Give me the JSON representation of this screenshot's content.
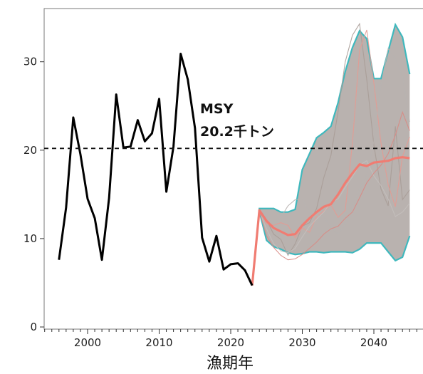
{
  "chart_data": {
    "type": "line",
    "xlabel": "漁期年",
    "ylabel": "",
    "xlim": [
      1994,
      2046
    ],
    "ylim": [
      0,
      36
    ],
    "x_ticks": [
      2000,
      2010,
      2020,
      2030,
      2040
    ],
    "y_ticks": [
      0,
      10,
      20,
      30
    ],
    "grid": false,
    "reference_line": {
      "value": 20.2,
      "style": "dashed",
      "label_line1": "MSY",
      "label_line2": "20.2千トン"
    },
    "observed": {
      "color": "#000000",
      "x": [
        1996,
        1997,
        1998,
        1999,
        2000,
        2001,
        2002,
        2003,
        2004,
        2005,
        2006,
        2007,
        2008,
        2009,
        2010,
        2011,
        2012,
        2013,
        2014,
        2015,
        2016,
        2017,
        2018,
        2019,
        2020,
        2021,
        2022,
        2023
      ],
      "values": [
        7.6,
        13.5,
        23.7,
        19.5,
        14.5,
        12.3,
        7.6,
        14.6,
        26.3,
        20.3,
        20.4,
        23.4,
        21.0,
        21.9,
        25.8,
        15.3,
        20.4,
        30.9,
        28.0,
        22.5,
        10.1,
        7.4,
        10.3,
        6.5,
        7.1,
        7.2,
        6.4,
        4.7
      ]
    },
    "projection_band": {
      "fill": "#b5aeab",
      "edge_color": "#3fb8bd",
      "x": [
        2023,
        2024,
        2025,
        2026,
        2027,
        2028,
        2029,
        2030,
        2031,
        2032,
        2033,
        2034,
        2035,
        2036,
        2037,
        2038,
        2039,
        2040,
        2041,
        2042,
        2043,
        2044,
        2045
      ],
      "upper": [
        4.7,
        13.4,
        13.4,
        13.4,
        13.0,
        13.0,
        13.3,
        17.8,
        19.6,
        21.4,
        22.0,
        22.7,
        25.4,
        28.9,
        31.6,
        33.5,
        32.6,
        28.1,
        28.1,
        31.2,
        34.2,
        32.8,
        28.6
      ],
      "lower": [
        4.7,
        13.1,
        9.8,
        9.1,
        8.8,
        8.4,
        8.2,
        8.3,
        8.5,
        8.5,
        8.4,
        8.5,
        8.5,
        8.5,
        8.4,
        8.8,
        9.5,
        9.5,
        9.5,
        8.5,
        7.5,
        7.9,
        10.3
      ]
    },
    "median": {
      "color": "#f07c72",
      "x": [
        2023,
        2024,
        2025,
        2026,
        2027,
        2028,
        2029,
        2030,
        2031,
        2032,
        2033,
        2034,
        2035,
        2036,
        2037,
        2038,
        2039,
        2040,
        2041,
        2042,
        2043,
        2044,
        2045
      ],
      "values": [
        4.7,
        13.2,
        12.0,
        11.2,
        10.8,
        10.4,
        10.5,
        11.5,
        12.3,
        13.0,
        13.6,
        13.9,
        15.0,
        16.3,
        17.4,
        18.4,
        18.2,
        18.6,
        18.7,
        18.8,
        19.1,
        19.2,
        19.1
      ]
    },
    "trajectories": [
      {
        "color": "#a89c97",
        "values": [
          4.7,
          13.3,
          12.1,
          10.5,
          9.9,
          8.1,
          9.4,
          11.4,
          11.8,
          13.4,
          16.9,
          19.4,
          24.4,
          30.0,
          33.0,
          34.3,
          28.0,
          20.6,
          15.6,
          13.7,
          22.7,
          14.4,
          15.5
        ]
      },
      {
        "color": "#e59a92",
        "values": [
          4.7,
          13.2,
          11.7,
          11.5,
          11.8,
          11.5,
          10.1,
          11.2,
          10.7,
          12.5,
          13.1,
          13.8,
          12.4,
          13.2,
          20.8,
          31.3,
          33.6,
          27.6,
          20.8,
          16.1,
          13.6,
          19.3,
          21.5
        ]
      },
      {
        "color": "#b8b3b0",
        "values": [
          4.7,
          13.2,
          12.5,
          11.8,
          12.4,
          13.7,
          14.4,
          14.5,
          13.0,
          12.6,
          12.5,
          11.3,
          10.5,
          11.6,
          13.7,
          15.6,
          17.2,
          21.0,
          27.4,
          31.5,
          30.3,
          28.4,
          23.2
        ]
      },
      {
        "color": "#c4bfbc",
        "values": [
          4.7,
          13.0,
          11.1,
          9.4,
          8.6,
          8.4,
          8.9,
          10.2,
          11.4,
          12.2,
          13.0,
          14.1,
          14.5,
          15.8,
          17.0,
          18.3,
          18.8,
          17.1,
          16.0,
          14.5,
          12.5,
          13.0,
          14.0
        ]
      },
      {
        "color": "#d98a84",
        "values": [
          4.7,
          13.1,
          10.3,
          9.0,
          8.1,
          7.6,
          7.7,
          8.2,
          8.9,
          9.6,
          10.5,
          11.1,
          11.4,
          12.3,
          13.0,
          14.6,
          16.3,
          17.4,
          18.3,
          19.6,
          21.7,
          24.3,
          22.2
        ]
      }
    ]
  }
}
